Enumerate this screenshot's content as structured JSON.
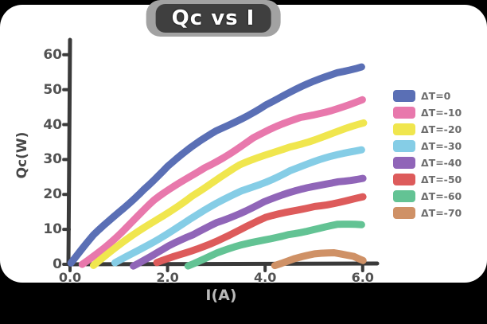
{
  "chart_data": {
    "type": "line",
    "title": "Qc vs I",
    "xlabel": "I(A)",
    "ylabel": "Qc(W)",
    "xlim": [
      0,
      6.2
    ],
    "ylim": [
      0,
      62
    ],
    "grid": false,
    "legend_position": "right",
    "xticks": {
      "values": [
        0,
        2,
        4,
        6
      ],
      "labels": [
        "0.0",
        "2.0",
        "4.0",
        "6.0"
      ]
    },
    "yticks": {
      "values": [
        0,
        10,
        20,
        30,
        40,
        50,
        60
      ],
      "labels": [
        "0",
        "10",
        "20",
        "30",
        "40",
        "50",
        "60"
      ]
    },
    "series": [
      {
        "name": "ΔT=0",
        "color": "#5a6fb5",
        "x": [
          0,
          0.5,
          1,
          1.5,
          2,
          2.5,
          3,
          3.5,
          4,
          4.5,
          5,
          5.5,
          6
        ],
        "y": [
          0,
          8,
          15,
          22,
          28,
          33,
          38,
          42,
          46,
          49,
          52,
          55,
          57
        ]
      },
      {
        "name": "ΔT=-10",
        "color": "#e878ac",
        "x": [
          0.25,
          0.75,
          1.25,
          1.75,
          2.25,
          2.75,
          3.25,
          3.75,
          4.25,
          4.75,
          5.25,
          5.75,
          6
        ],
        "y": [
          0,
          6,
          12,
          18,
          23,
          28,
          32,
          36,
          39,
          42,
          44,
          46,
          47
        ]
      },
      {
        "name": "ΔT=-20",
        "color": "#f0e64e",
        "x": [
          0.5,
          1,
          1.5,
          2,
          2.5,
          3,
          3.5,
          4,
          4.5,
          5,
          5.5,
          6
        ],
        "y": [
          0,
          5,
          10,
          15,
          20,
          24,
          28,
          31,
          34,
          36,
          38,
          40
        ]
      },
      {
        "name": "ΔT=-30",
        "color": "#85cde6",
        "x": [
          0.9,
          1.5,
          2,
          2.5,
          3,
          3.5,
          4,
          4.5,
          5,
          5.5,
          6
        ],
        "y": [
          0,
          5,
          9,
          13,
          17,
          21,
          24,
          27,
          29,
          31,
          33
        ]
      },
      {
        "name": "ΔT=-40",
        "color": "#9065b8",
        "x": [
          1.3,
          2,
          2.5,
          3,
          3.5,
          4,
          4.5,
          5,
          5.5,
          6
        ],
        "y": [
          0,
          5,
          8,
          12,
          15,
          18,
          20,
          22,
          24,
          25
        ]
      },
      {
        "name": "ΔT=-50",
        "color": "#dd5b5b",
        "x": [
          1.8,
          2.5,
          3,
          3.5,
          4,
          4.5,
          5,
          5.5,
          6
        ],
        "y": [
          0,
          4,
          7,
          10,
          13,
          15,
          17,
          18,
          19
        ]
      },
      {
        "name": "ΔT=-60",
        "color": "#63c394",
        "x": [
          2.4,
          3,
          3.5,
          4,
          4.5,
          5,
          5.5,
          6
        ],
        "y": [
          0,
          3,
          5,
          7,
          9,
          10,
          11,
          11
        ]
      },
      {
        "name": "ΔT=-70",
        "color": "#cf9166",
        "x": [
          4.2,
          4.6,
          5,
          5.4,
          5.8,
          6
        ],
        "y": [
          0,
          1.5,
          2.5,
          3,
          2.5,
          1.5
        ]
      }
    ]
  },
  "colors": {
    "page_background": "#000000",
    "plot_background": "#ffffff",
    "axis": "#3a3a3a",
    "title_background": "#3f3f3f",
    "title_text": "#ffffff"
  }
}
